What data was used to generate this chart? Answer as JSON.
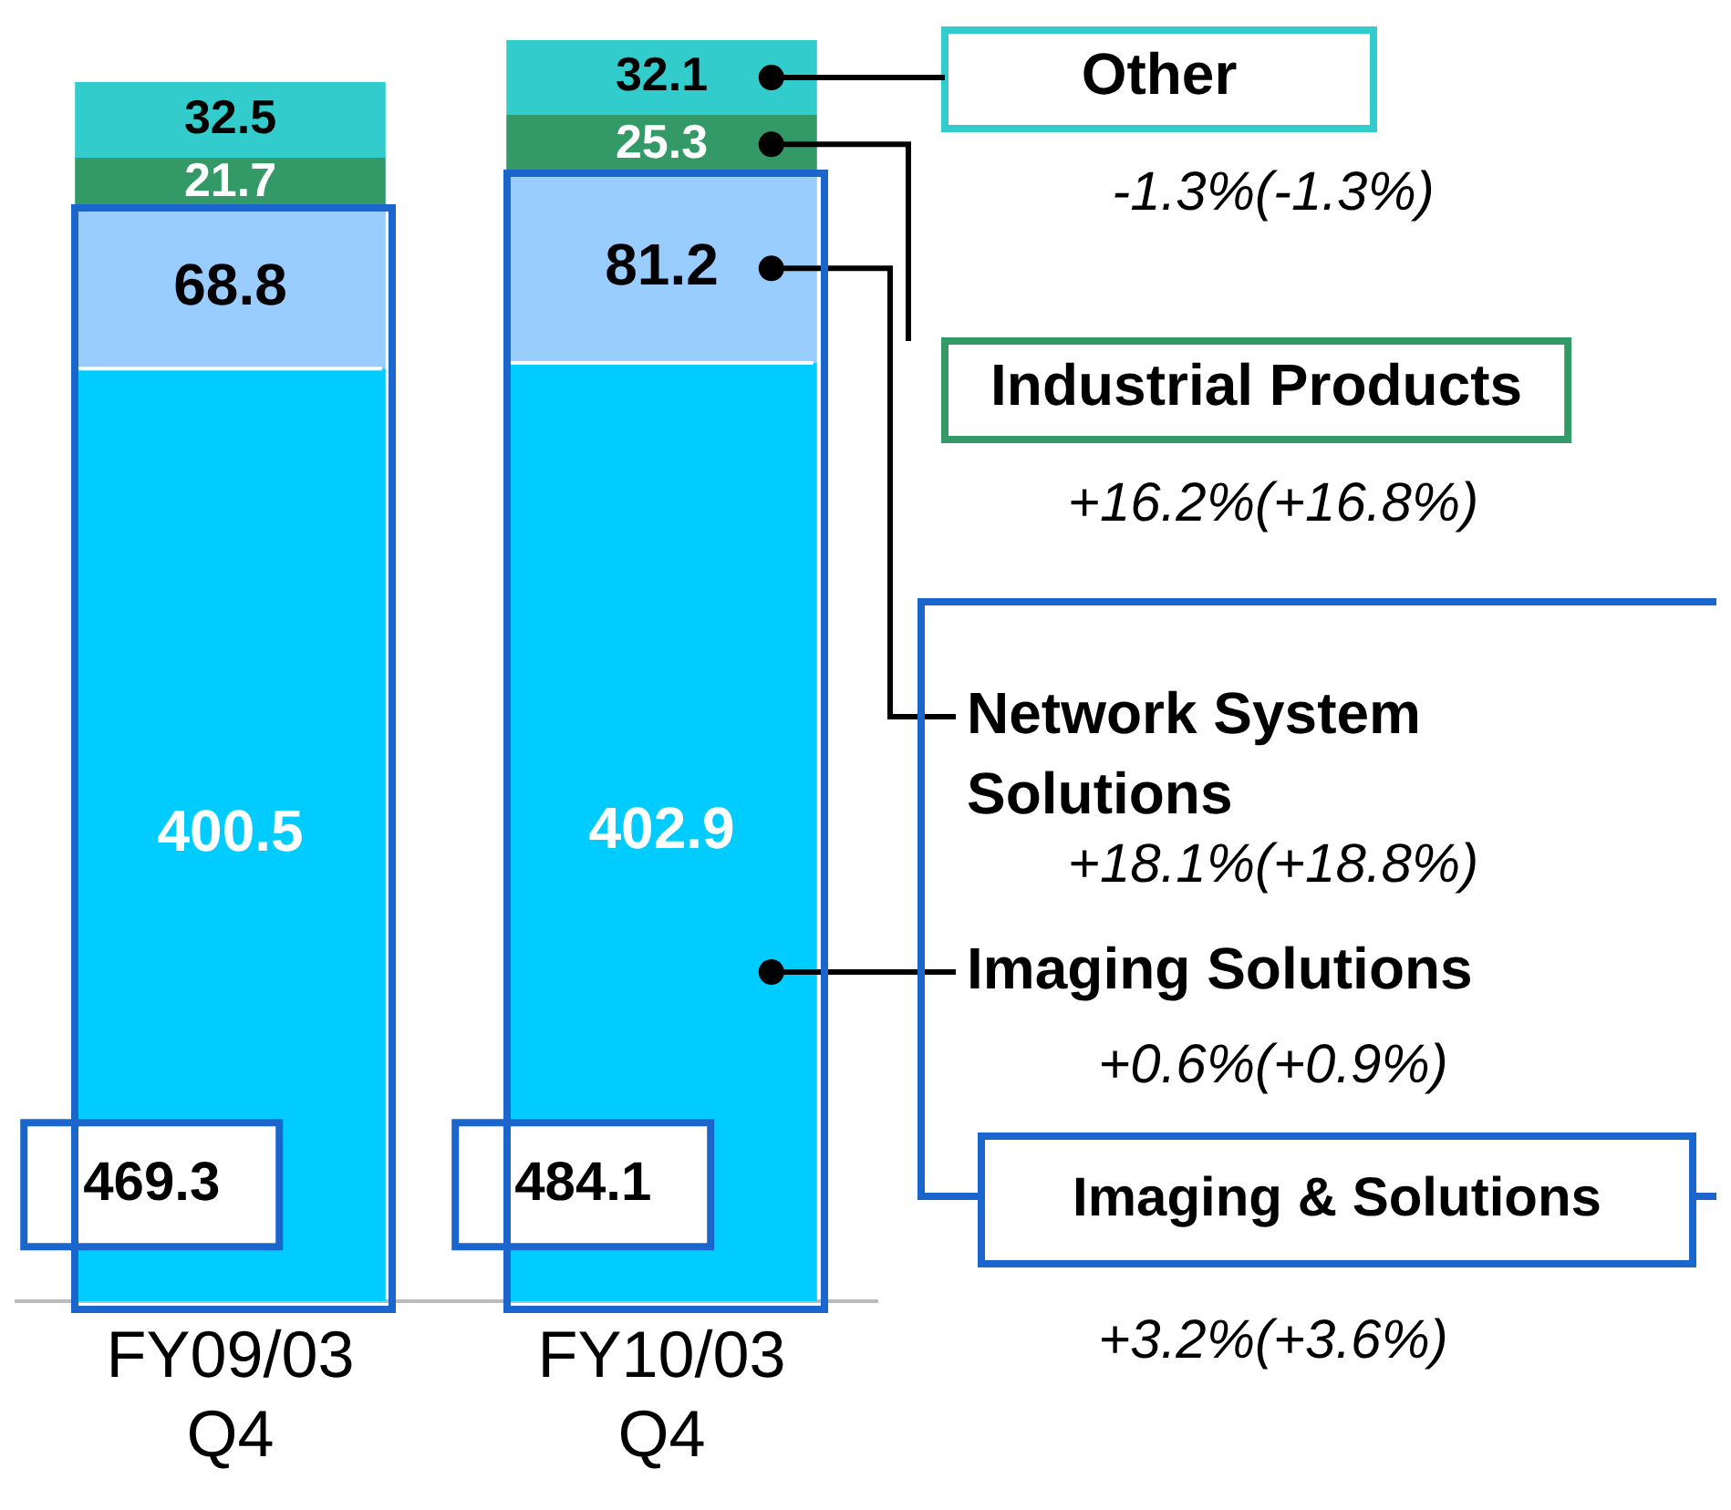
{
  "chart_data": {
    "type": "bar",
    "stacked": true,
    "data_labels": true,
    "grid": false,
    "legend": false,
    "categories": [
      "FY09/03 Q4",
      "FY10/03 Q4"
    ],
    "series": [
      {
        "name": "Imaging Solutions",
        "color": "#00ccff",
        "values": [
          400.5,
          402.9
        ]
      },
      {
        "name": "Network System Solutions",
        "color": "#99ccff",
        "values": [
          68.8,
          81.2
        ]
      },
      {
        "name": "Industrial Products",
        "color": "#339966",
        "values": [
          21.7,
          25.3
        ]
      },
      {
        "name": "Other",
        "color": "#33cccc",
        "values": [
          32.5,
          32.1
        ]
      }
    ],
    "annotations": [
      "+0.6%(+0.9%)",
      "+18.1%(+18.8%)",
      "+16.2%(+16.8%)",
      "-1.3%(-1.3%)",
      "Imaging & Solutions",
      "+3.2%(+3.6%)",
      "469.3",
      "484.1"
    ]
  }
}
